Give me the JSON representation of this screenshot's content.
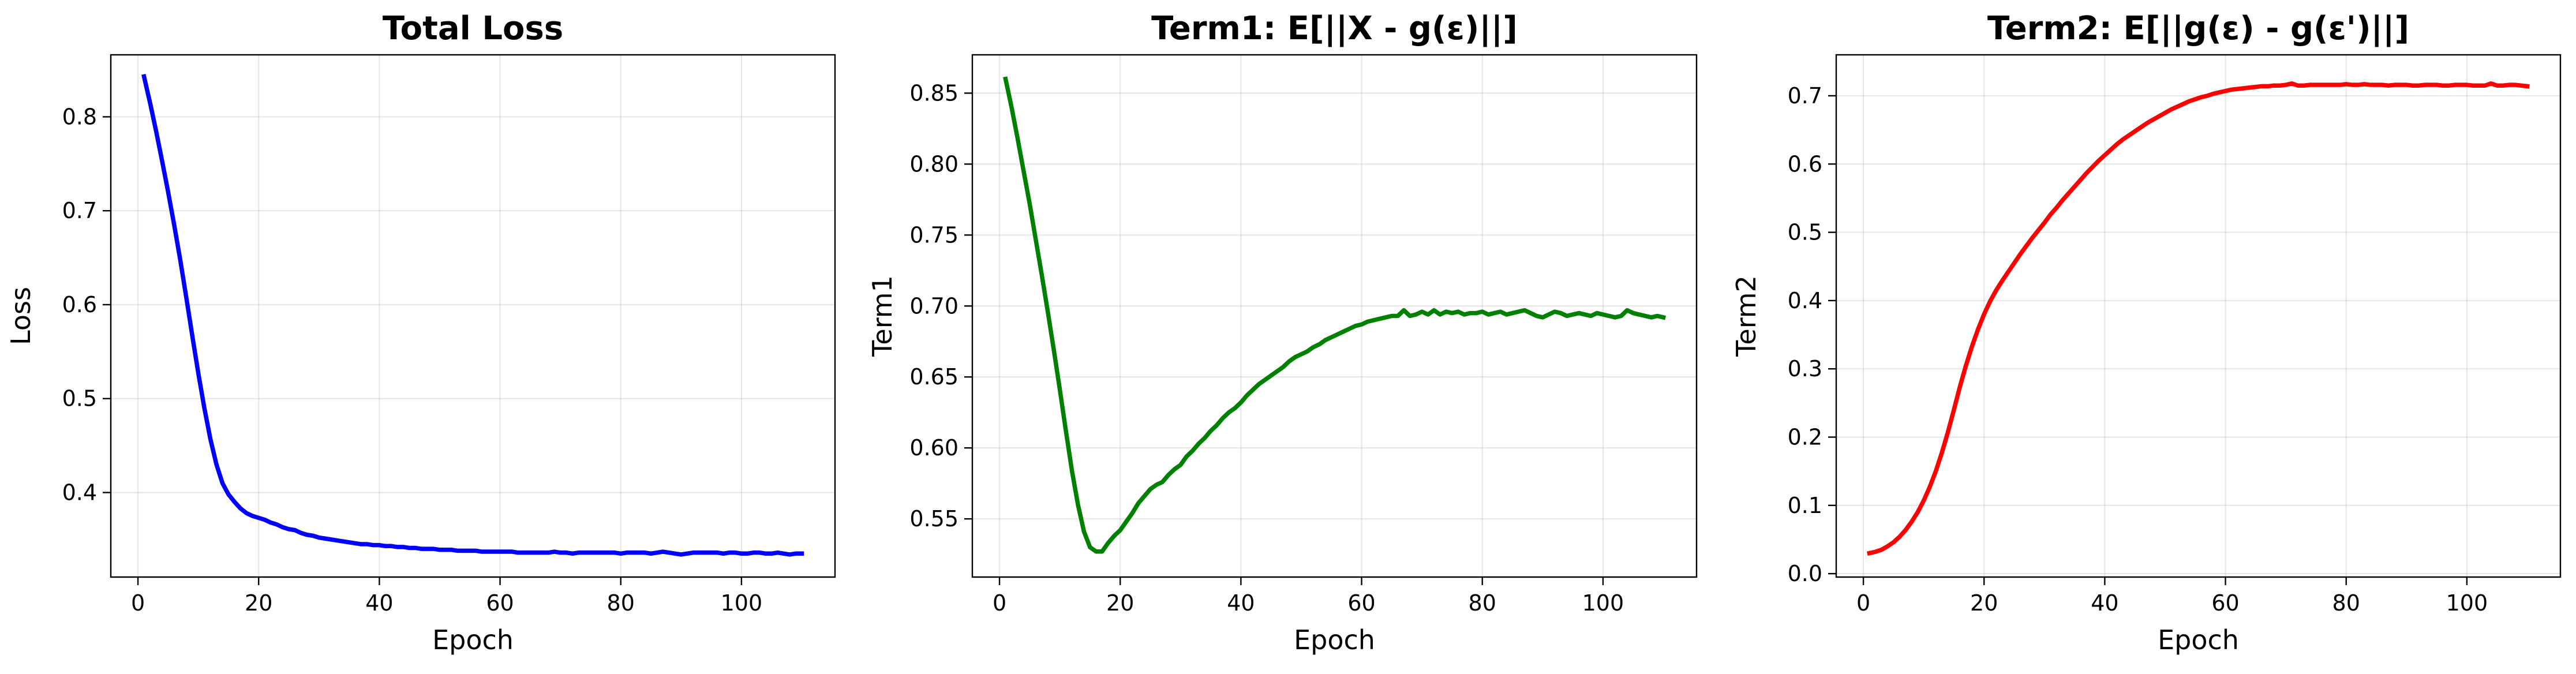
{
  "chart_data": [
    {
      "type": "line",
      "title": "Total Loss",
      "xlabel": "Epoch",
      "ylabel": "Loss",
      "xlim": [
        -4.5,
        115.5
      ],
      "ylim": [
        0.31,
        0.866
      ],
      "xticks": [
        0,
        20,
        40,
        60,
        80,
        100
      ],
      "yticks": [
        0.4,
        0.5,
        0.6,
        0.7,
        0.8
      ],
      "xtick_labels": [
        "0",
        "20",
        "40",
        "60",
        "80",
        "100"
      ],
      "ytick_labels": [
        "0.4",
        "0.5",
        "0.6",
        "0.7",
        "0.8"
      ],
      "grid": true,
      "series": [
        {
          "name": "Total Loss",
          "color": "#0000ff",
          "x": [
            1,
            2,
            3,
            4,
            5,
            6,
            7,
            8,
            9,
            10,
            11,
            12,
            13,
            14,
            15,
            16,
            17,
            18,
            19,
            20,
            21,
            22,
            23,
            24,
            25,
            26,
            27,
            28,
            29,
            30,
            31,
            32,
            33,
            34,
            35,
            36,
            37,
            38,
            39,
            40,
            41,
            42,
            43,
            44,
            45,
            46,
            47,
            48,
            49,
            50,
            51,
            52,
            53,
            54,
            55,
            56,
            57,
            58,
            59,
            60,
            61,
            62,
            63,
            64,
            65,
            66,
            67,
            68,
            69,
            70,
            71,
            72,
            73,
            74,
            75,
            76,
            77,
            78,
            79,
            80,
            81,
            82,
            83,
            84,
            85,
            86,
            87,
            88,
            89,
            90,
            91,
            92,
            93,
            94,
            95,
            96,
            97,
            98,
            99,
            100,
            101,
            102,
            103,
            104,
            105,
            106,
            107,
            108,
            109,
            110
          ],
          "values": [
            0.843,
            0.815,
            0.785,
            0.753,
            0.72,
            0.685,
            0.648,
            0.608,
            0.567,
            0.527,
            0.49,
            0.457,
            0.43,
            0.41,
            0.398,
            0.39,
            0.383,
            0.378,
            0.375,
            0.373,
            0.371,
            0.368,
            0.366,
            0.363,
            0.361,
            0.36,
            0.357,
            0.355,
            0.354,
            0.352,
            0.351,
            0.35,
            0.349,
            0.348,
            0.347,
            0.346,
            0.345,
            0.345,
            0.344,
            0.344,
            0.343,
            0.343,
            0.342,
            0.342,
            0.341,
            0.341,
            0.34,
            0.34,
            0.34,
            0.339,
            0.339,
            0.339,
            0.338,
            0.338,
            0.338,
            0.338,
            0.337,
            0.337,
            0.337,
            0.337,
            0.337,
            0.337,
            0.336,
            0.336,
            0.336,
            0.336,
            0.336,
            0.336,
            0.337,
            0.336,
            0.336,
            0.335,
            0.336,
            0.336,
            0.336,
            0.336,
            0.336,
            0.336,
            0.336,
            0.335,
            0.336,
            0.336,
            0.336,
            0.336,
            0.335,
            0.336,
            0.337,
            0.336,
            0.335,
            0.334,
            0.335,
            0.336,
            0.336,
            0.336,
            0.336,
            0.336,
            0.335,
            0.336,
            0.336,
            0.335,
            0.335,
            0.336,
            0.336,
            0.335,
            0.335,
            0.336,
            0.335,
            0.334,
            0.335,
            0.335
          ]
        }
      ]
    },
    {
      "type": "line",
      "title": "Term1: E[||X - g(ε)||]",
      "xlabel": "Epoch",
      "ylabel": "Term1",
      "xlim": [
        -4.5,
        115.5
      ],
      "ylim": [
        0.509,
        0.877
      ],
      "xticks": [
        0,
        20,
        40,
        60,
        80,
        100
      ],
      "yticks": [
        0.55,
        0.6,
        0.65,
        0.7,
        0.75,
        0.8,
        0.85
      ],
      "xtick_labels": [
        "0",
        "20",
        "40",
        "60",
        "80",
        "100"
      ],
      "ytick_labels": [
        "0.55",
        "0.60",
        "0.65",
        "0.70",
        "0.75",
        "0.80",
        "0.85"
      ],
      "grid": true,
      "series": [
        {
          "name": "Term1",
          "color": "#008000",
          "x": [
            1,
            2,
            3,
            4,
            5,
            6,
            7,
            8,
            9,
            10,
            11,
            12,
            13,
            14,
            15,
            16,
            17,
            18,
            19,
            20,
            21,
            22,
            23,
            24,
            25,
            26,
            27,
            28,
            29,
            30,
            31,
            32,
            33,
            34,
            35,
            36,
            37,
            38,
            39,
            40,
            41,
            42,
            43,
            44,
            45,
            46,
            47,
            48,
            49,
            50,
            51,
            52,
            53,
            54,
            55,
            56,
            57,
            58,
            59,
            60,
            61,
            62,
            63,
            64,
            65,
            66,
            67,
            68,
            69,
            70,
            71,
            72,
            73,
            74,
            75,
            76,
            77,
            78,
            79,
            80,
            81,
            82,
            83,
            84,
            85,
            86,
            87,
            88,
            89,
            90,
            91,
            92,
            93,
            94,
            95,
            96,
            97,
            98,
            99,
            100,
            101,
            102,
            103,
            104,
            105,
            106,
            107,
            108,
            109,
            110
          ],
          "values": [
            0.86,
            0.84,
            0.818,
            0.795,
            0.772,
            0.747,
            0.722,
            0.696,
            0.669,
            0.641,
            0.612,
            0.584,
            0.56,
            0.541,
            0.53,
            0.527,
            0.527,
            0.533,
            0.538,
            0.542,
            0.548,
            0.554,
            0.561,
            0.566,
            0.571,
            0.574,
            0.576,
            0.581,
            0.585,
            0.588,
            0.594,
            0.598,
            0.603,
            0.607,
            0.612,
            0.616,
            0.621,
            0.625,
            0.628,
            0.632,
            0.637,
            0.641,
            0.645,
            0.648,
            0.651,
            0.654,
            0.657,
            0.661,
            0.664,
            0.666,
            0.668,
            0.671,
            0.673,
            0.676,
            0.678,
            0.68,
            0.682,
            0.684,
            0.686,
            0.687,
            0.689,
            0.69,
            0.691,
            0.692,
            0.693,
            0.693,
            0.697,
            0.693,
            0.694,
            0.696,
            0.694,
            0.697,
            0.694,
            0.696,
            0.695,
            0.696,
            0.694,
            0.695,
            0.695,
            0.696,
            0.694,
            0.695,
            0.696,
            0.694,
            0.695,
            0.696,
            0.697,
            0.695,
            0.693,
            0.692,
            0.694,
            0.696,
            0.695,
            0.693,
            0.694,
            0.695,
            0.694,
            0.693,
            0.695,
            0.694,
            0.693,
            0.692,
            0.693,
            0.697,
            0.695,
            0.694,
            0.693,
            0.692,
            0.693,
            0.692
          ]
        }
      ]
    },
    {
      "type": "line",
      "title": "Term2: E[||g(ε) - g(ε')||]",
      "xlabel": "Epoch",
      "ylabel": "Term2",
      "xlim": [
        -4.5,
        115.5
      ],
      "ylim": [
        -0.005,
        0.76
      ],
      "xticks": [
        0,
        20,
        40,
        60,
        80,
        100
      ],
      "yticks": [
        0.0,
        0.1,
        0.2,
        0.3,
        0.4,
        0.5,
        0.6,
        0.7
      ],
      "xtick_labels": [
        "0",
        "20",
        "40",
        "60",
        "80",
        "100"
      ],
      "ytick_labels": [
        "0.0",
        "0.1",
        "0.2",
        "0.3",
        "0.4",
        "0.5",
        "0.6",
        "0.7"
      ],
      "grid": true,
      "series": [
        {
          "name": "Term2",
          "color": "#ff0000",
          "x": [
            1,
            2,
            3,
            4,
            5,
            6,
            7,
            8,
            9,
            10,
            11,
            12,
            13,
            14,
            15,
            16,
            17,
            18,
            19,
            20,
            21,
            22,
            23,
            24,
            25,
            26,
            27,
            28,
            29,
            30,
            31,
            32,
            33,
            34,
            35,
            36,
            37,
            38,
            39,
            40,
            41,
            42,
            43,
            44,
            45,
            46,
            47,
            48,
            49,
            50,
            51,
            52,
            53,
            54,
            55,
            56,
            57,
            58,
            59,
            60,
            61,
            62,
            63,
            64,
            65,
            66,
            67,
            68,
            69,
            70,
            71,
            72,
            73,
            74,
            75,
            76,
            77,
            78,
            79,
            80,
            81,
            82,
            83,
            84,
            85,
            86,
            87,
            88,
            89,
            90,
            91,
            92,
            93,
            94,
            95,
            96,
            97,
            98,
            99,
            100,
            101,
            102,
            103,
            104,
            105,
            106,
            107,
            108,
            109,
            110
          ],
          "values": [
            0.03,
            0.032,
            0.035,
            0.04,
            0.046,
            0.054,
            0.064,
            0.076,
            0.09,
            0.107,
            0.127,
            0.15,
            0.177,
            0.207,
            0.24,
            0.274,
            0.305,
            0.333,
            0.358,
            0.38,
            0.399,
            0.415,
            0.429,
            0.442,
            0.455,
            0.468,
            0.48,
            0.492,
            0.503,
            0.514,
            0.526,
            0.536,
            0.547,
            0.557,
            0.567,
            0.577,
            0.587,
            0.596,
            0.605,
            0.613,
            0.621,
            0.629,
            0.636,
            0.642,
            0.648,
            0.654,
            0.66,
            0.665,
            0.67,
            0.675,
            0.68,
            0.684,
            0.688,
            0.692,
            0.695,
            0.698,
            0.7,
            0.703,
            0.705,
            0.707,
            0.709,
            0.71,
            0.711,
            0.712,
            0.713,
            0.714,
            0.714,
            0.715,
            0.715,
            0.716,
            0.718,
            0.715,
            0.715,
            0.716,
            0.716,
            0.716,
            0.716,
            0.716,
            0.716,
            0.717,
            0.716,
            0.716,
            0.717,
            0.716,
            0.716,
            0.716,
            0.715,
            0.716,
            0.716,
            0.716,
            0.715,
            0.715,
            0.716,
            0.716,
            0.716,
            0.715,
            0.715,
            0.716,
            0.716,
            0.716,
            0.715,
            0.715,
            0.715,
            0.718,
            0.715,
            0.715,
            0.716,
            0.716,
            0.715,
            0.714
          ]
        }
      ]
    }
  ]
}
